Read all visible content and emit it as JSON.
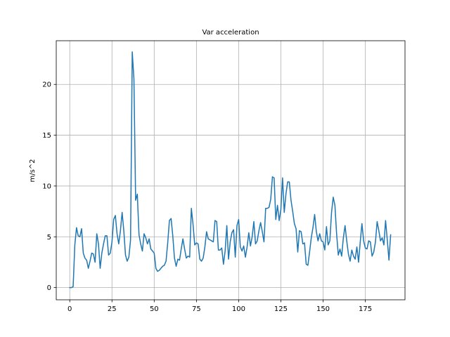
{
  "chart_data": {
    "type": "line",
    "title": "Var acceleration",
    "xlabel": "",
    "ylabel": "m/s^2",
    "xlim": [
      -8,
      198.5
    ],
    "ylim": [
      -1.2,
      24.3
    ],
    "xticks": [
      0,
      25,
      50,
      75,
      100,
      125,
      150,
      175
    ],
    "yticks": [
      0,
      5,
      10,
      15,
      20
    ],
    "grid": true,
    "line_color": "#1f77b4",
    "grid_color": "#b0b0b0",
    "series": [
      {
        "x": [
          0,
          1,
          2,
          3,
          4,
          5,
          6,
          7,
          8,
          9,
          10,
          11,
          12,
          13,
          14,
          15,
          16,
          17,
          18,
          19,
          20,
          21,
          22,
          23,
          24,
          25,
          26,
          27,
          28,
          29,
          30,
          31,
          32,
          33,
          34,
          35,
          36,
          37,
          38,
          39,
          40,
          41,
          42,
          43,
          44,
          45,
          46,
          47,
          48,
          49,
          50,
          51,
          52,
          53,
          54,
          55,
          56,
          57,
          58,
          59,
          60,
          61,
          62,
          63,
          64,
          65,
          66,
          67,
          68,
          69,
          70,
          71,
          72,
          73,
          74,
          75,
          76,
          77,
          78,
          79,
          80,
          81,
          82,
          83,
          84,
          85,
          86,
          87,
          88,
          89,
          90,
          91,
          92,
          93,
          94,
          95,
          96,
          97,
          98,
          99,
          100,
          101,
          102,
          103,
          104,
          105,
          106,
          107,
          108,
          109,
          110,
          111,
          112,
          113,
          114,
          115,
          116,
          117,
          118,
          119,
          120,
          121,
          122,
          123,
          124,
          125,
          126,
          127,
          128,
          129,
          130,
          131,
          132,
          133,
          134,
          135,
          136,
          137,
          138,
          139,
          140,
          141,
          142,
          143,
          144,
          145,
          146,
          147,
          148,
          149,
          150,
          151,
          152,
          153,
          154,
          155,
          156,
          157,
          158,
          159,
          160,
          161,
          162,
          163,
          164,
          165,
          166,
          167,
          168,
          169,
          170,
          171,
          172,
          173,
          174,
          175,
          176,
          177,
          178,
          179,
          180,
          181,
          182,
          183,
          184,
          185,
          186,
          187,
          188,
          189,
          190
        ],
        "values": [
          0.0,
          0.0,
          0.1,
          4.2,
          5.9,
          5.1,
          5.0,
          5.8,
          3.4,
          2.9,
          2.7,
          1.9,
          2.6,
          3.4,
          3.3,
          2.5,
          5.3,
          4.3,
          1.9,
          3.4,
          4.3,
          5.1,
          5.1,
          3.2,
          3.4,
          4.5,
          6.7,
          7.1,
          5.3,
          4.3,
          5.6,
          7.4,
          5.6,
          3.2,
          2.6,
          3.0,
          4.7,
          23.2,
          20.5,
          8.6,
          9.2,
          5.2,
          4.3,
          3.6,
          5.3,
          4.9,
          4.3,
          4.8,
          3.8,
          3.6,
          3.4,
          1.9,
          1.6,
          1.7,
          1.9,
          2.1,
          2.2,
          2.6,
          4.4,
          6.6,
          6.8,
          5.1,
          2.9,
          2.1,
          2.8,
          2.7,
          3.8,
          4.8,
          3.8,
          2.9,
          3.1,
          3.0,
          7.8,
          6.2,
          4.2,
          4.4,
          4.3,
          2.8,
          2.6,
          2.9,
          4.0,
          5.5,
          4.8,
          4.7,
          4.6,
          4.5,
          6.6,
          6.5,
          3.7,
          3.7,
          3.9,
          2.3,
          3.6,
          6.1,
          2.8,
          4.5,
          5.4,
          5.7,
          3.0,
          6.1,
          6.7,
          4.0,
          3.6,
          4.1,
          3.0,
          4.0,
          5.4,
          4.1,
          5.0,
          6.5,
          4.3,
          4.6,
          5.6,
          6.4,
          5.5,
          4.5,
          7.8,
          7.8,
          7.9,
          8.7,
          10.9,
          10.8,
          6.7,
          8.1,
          6.6,
          7.7,
          10.8,
          7.4,
          9.2,
          10.4,
          10.4,
          8.6,
          7.5,
          6.3,
          5.8,
          3.5,
          5.6,
          5.5,
          4.3,
          4.4,
          2.3,
          2.2,
          3.5,
          4.9,
          5.9,
          7.2,
          5.5,
          4.6,
          5.3,
          4.6,
          4.5,
          3.7,
          6.0,
          4.2,
          4.6,
          7.4,
          8.9,
          8.1,
          5.3,
          3.2,
          3.8,
          3.1,
          4.9,
          6.1,
          4.6,
          3.3,
          2.6,
          3.7,
          3.1,
          2.8,
          4.0,
          2.5,
          4.5,
          6.3,
          4.6,
          3.9,
          3.8,
          4.6,
          4.5,
          3.1,
          3.5,
          4.5,
          6.5,
          5.6,
          4.6,
          4.9,
          4.2,
          6.6,
          4.7,
          2.7,
          5.2
        ]
      }
    ]
  }
}
